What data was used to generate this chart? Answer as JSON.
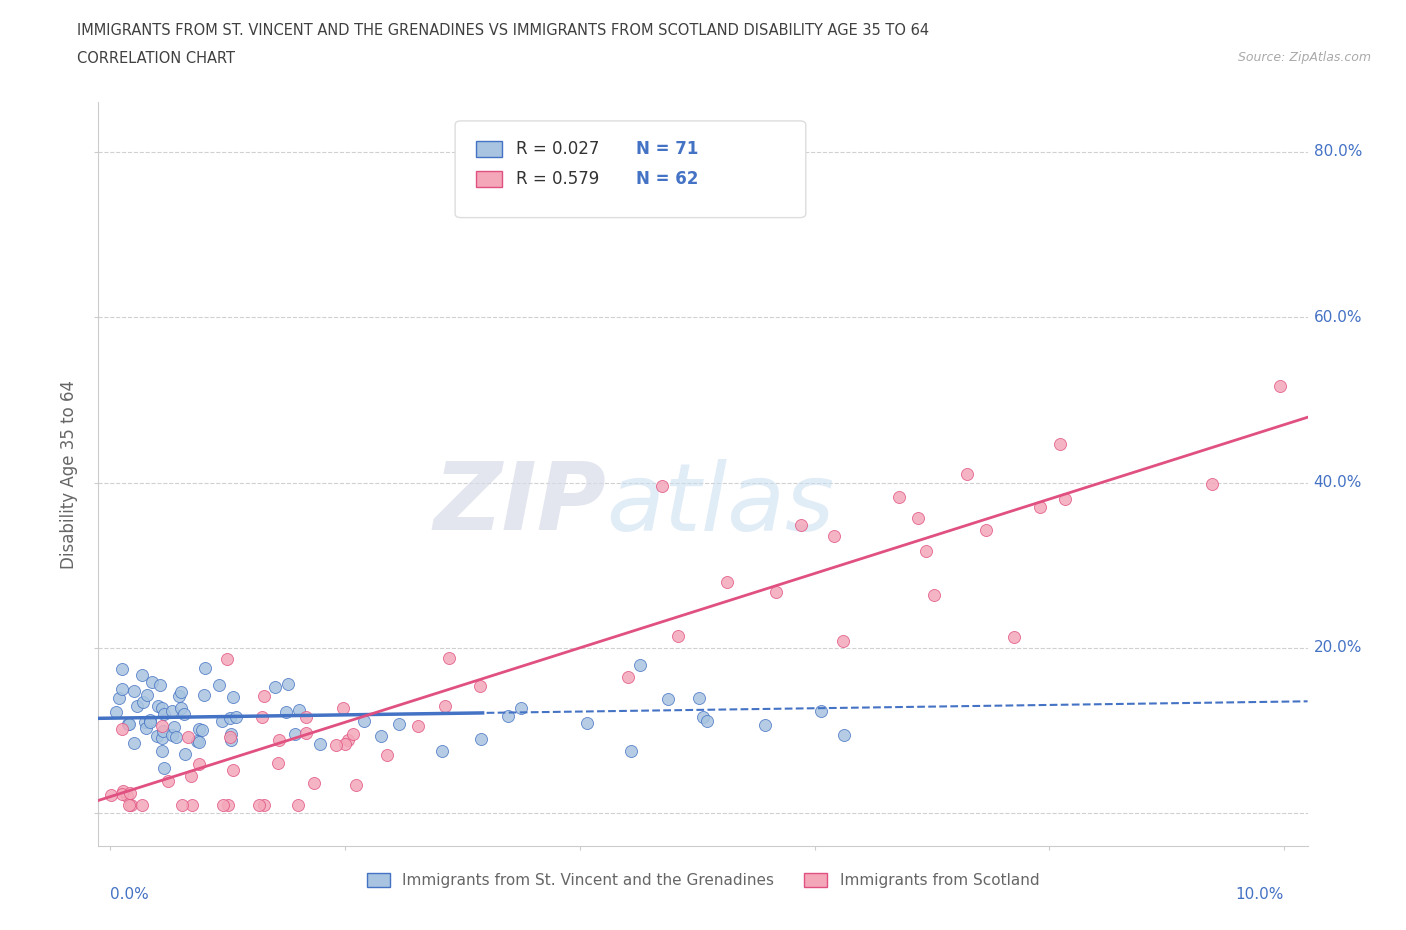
{
  "title_line1": "IMMIGRANTS FROM ST. VINCENT AND THE GRENADINES VS IMMIGRANTS FROM SCOTLAND DISABILITY AGE 35 TO 64",
  "title_line2": "CORRELATION CHART",
  "source_text": "Source: ZipAtlas.com",
  "ylabel": "Disability Age 35 to 64",
  "xlim": [
    -0.001,
    0.102
  ],
  "ylim": [
    -0.04,
    0.86
  ],
  "xticks": [
    0.0,
    0.02,
    0.04,
    0.06,
    0.08,
    0.1
  ],
  "xtick_labels": [
    "0.0%",
    "",
    "",
    "",
    "",
    "10.0%"
  ],
  "yticks": [
    0.0,
    0.2,
    0.4,
    0.6,
    0.8
  ],
  "ytick_labels": [
    "",
    "20.0%",
    "40.0%",
    "60.0%",
    "80.0%"
  ],
  "legend_label1": "Immigrants from St. Vincent and the Grenadines",
  "legend_label2": "Immigrants from Scotland",
  "R1": "0.027",
  "N1": "71",
  "R2": "0.579",
  "N2": "62",
  "color1": "#a8c4e0",
  "color2": "#f4a7b9",
  "line_color1": "#4472c4",
  "line_color2": "#e05080",
  "watermark_zip": "ZIP",
  "watermark_atlas": "atlas",
  "background_color": "#ffffff",
  "grid_color": "#d0d0d0",
  "title_color": "#404040",
  "axis_tick_color": "#4472c4"
}
